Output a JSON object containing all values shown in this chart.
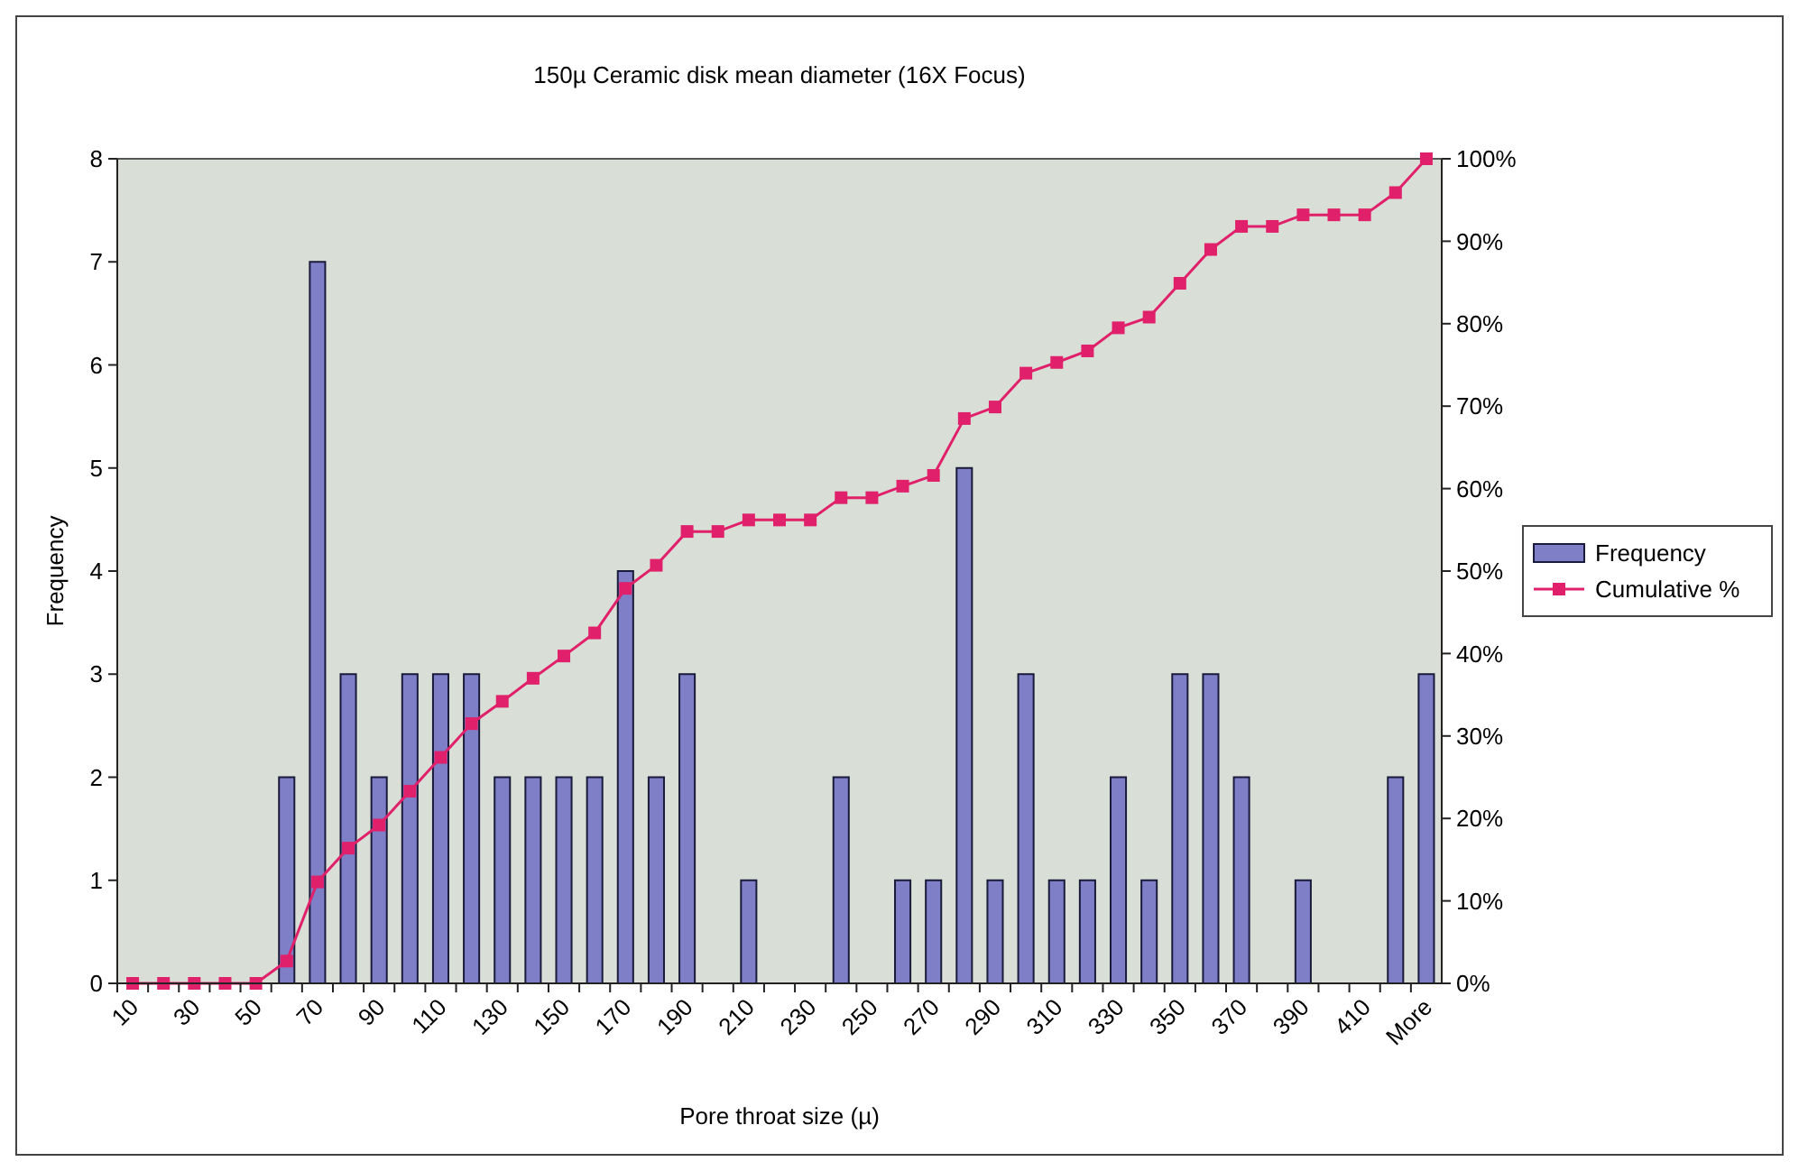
{
  "chart_data": {
    "type": "bar",
    "title": "150µ Ceramic disk mean diameter (16X Focus)",
    "xlabel": "Pore throat size (µ)",
    "ylabel": "Frequency",
    "categories": [
      "10",
      null,
      "30",
      null,
      "50",
      null,
      "70",
      null,
      "90",
      null,
      "110",
      null,
      "130",
      null,
      "150",
      null,
      "170",
      null,
      "190",
      null,
      "210",
      null,
      "230",
      null,
      "250",
      null,
      "270",
      null,
      "290",
      null,
      "310",
      null,
      "330",
      null,
      "350",
      null,
      "370",
      null,
      "390",
      null,
      "410",
      null,
      "More"
    ],
    "series": [
      {
        "name": "Frequency",
        "color": "#7f7fc8",
        "values": [
          0,
          0,
          0,
          0,
          0,
          2,
          7,
          3,
          2,
          3,
          3,
          3,
          2,
          2,
          2,
          2,
          4,
          2,
          3,
          0,
          1,
          0,
          0,
          2,
          0,
          1,
          1,
          5,
          1,
          3,
          1,
          1,
          2,
          1,
          3,
          3,
          2,
          0,
          1,
          0,
          0,
          2,
          3
        ]
      },
      {
        "name": "Cumulative %",
        "type": "line",
        "axis": "y2",
        "color": "#e0206a",
        "values": [
          0,
          0,
          0,
          0,
          0,
          2.7,
          12.3,
          16.4,
          19.2,
          23.3,
          27.4,
          31.5,
          34.2,
          37.0,
          39.7,
          42.5,
          47.9,
          50.7,
          54.8,
          54.8,
          56.2,
          56.2,
          56.2,
          58.9,
          58.9,
          60.3,
          61.6,
          68.5,
          69.9,
          74.0,
          75.3,
          76.7,
          79.5,
          80.8,
          84.9,
          89.0,
          91.8,
          91.8,
          93.2,
          93.2,
          93.2,
          95.9,
          100
        ]
      }
    ],
    "ylim": [
      0,
      8
    ],
    "yticks": [
      0,
      1,
      2,
      3,
      4,
      5,
      6,
      7,
      8
    ],
    "y2lim": [
      0,
      100
    ],
    "y2ticks": [
      {
        "value": 0,
        "label": "0%"
      },
      {
        "value": 10,
        "label": "10%"
      },
      {
        "value": 20,
        "label": "20%"
      },
      {
        "value": 30,
        "label": "30%"
      },
      {
        "value": 40,
        "label": "40%"
      },
      {
        "value": 50,
        "label": "50%"
      },
      {
        "value": 60,
        "label": "60%"
      },
      {
        "value": 70,
        "label": "70%"
      },
      {
        "value": 80,
        "label": "80%"
      },
      {
        "value": 90,
        "label": "90%"
      },
      {
        "value": 100,
        "label": "100%"
      }
    ],
    "legend": "right",
    "marker": "square",
    "line_style": "solid"
  }
}
